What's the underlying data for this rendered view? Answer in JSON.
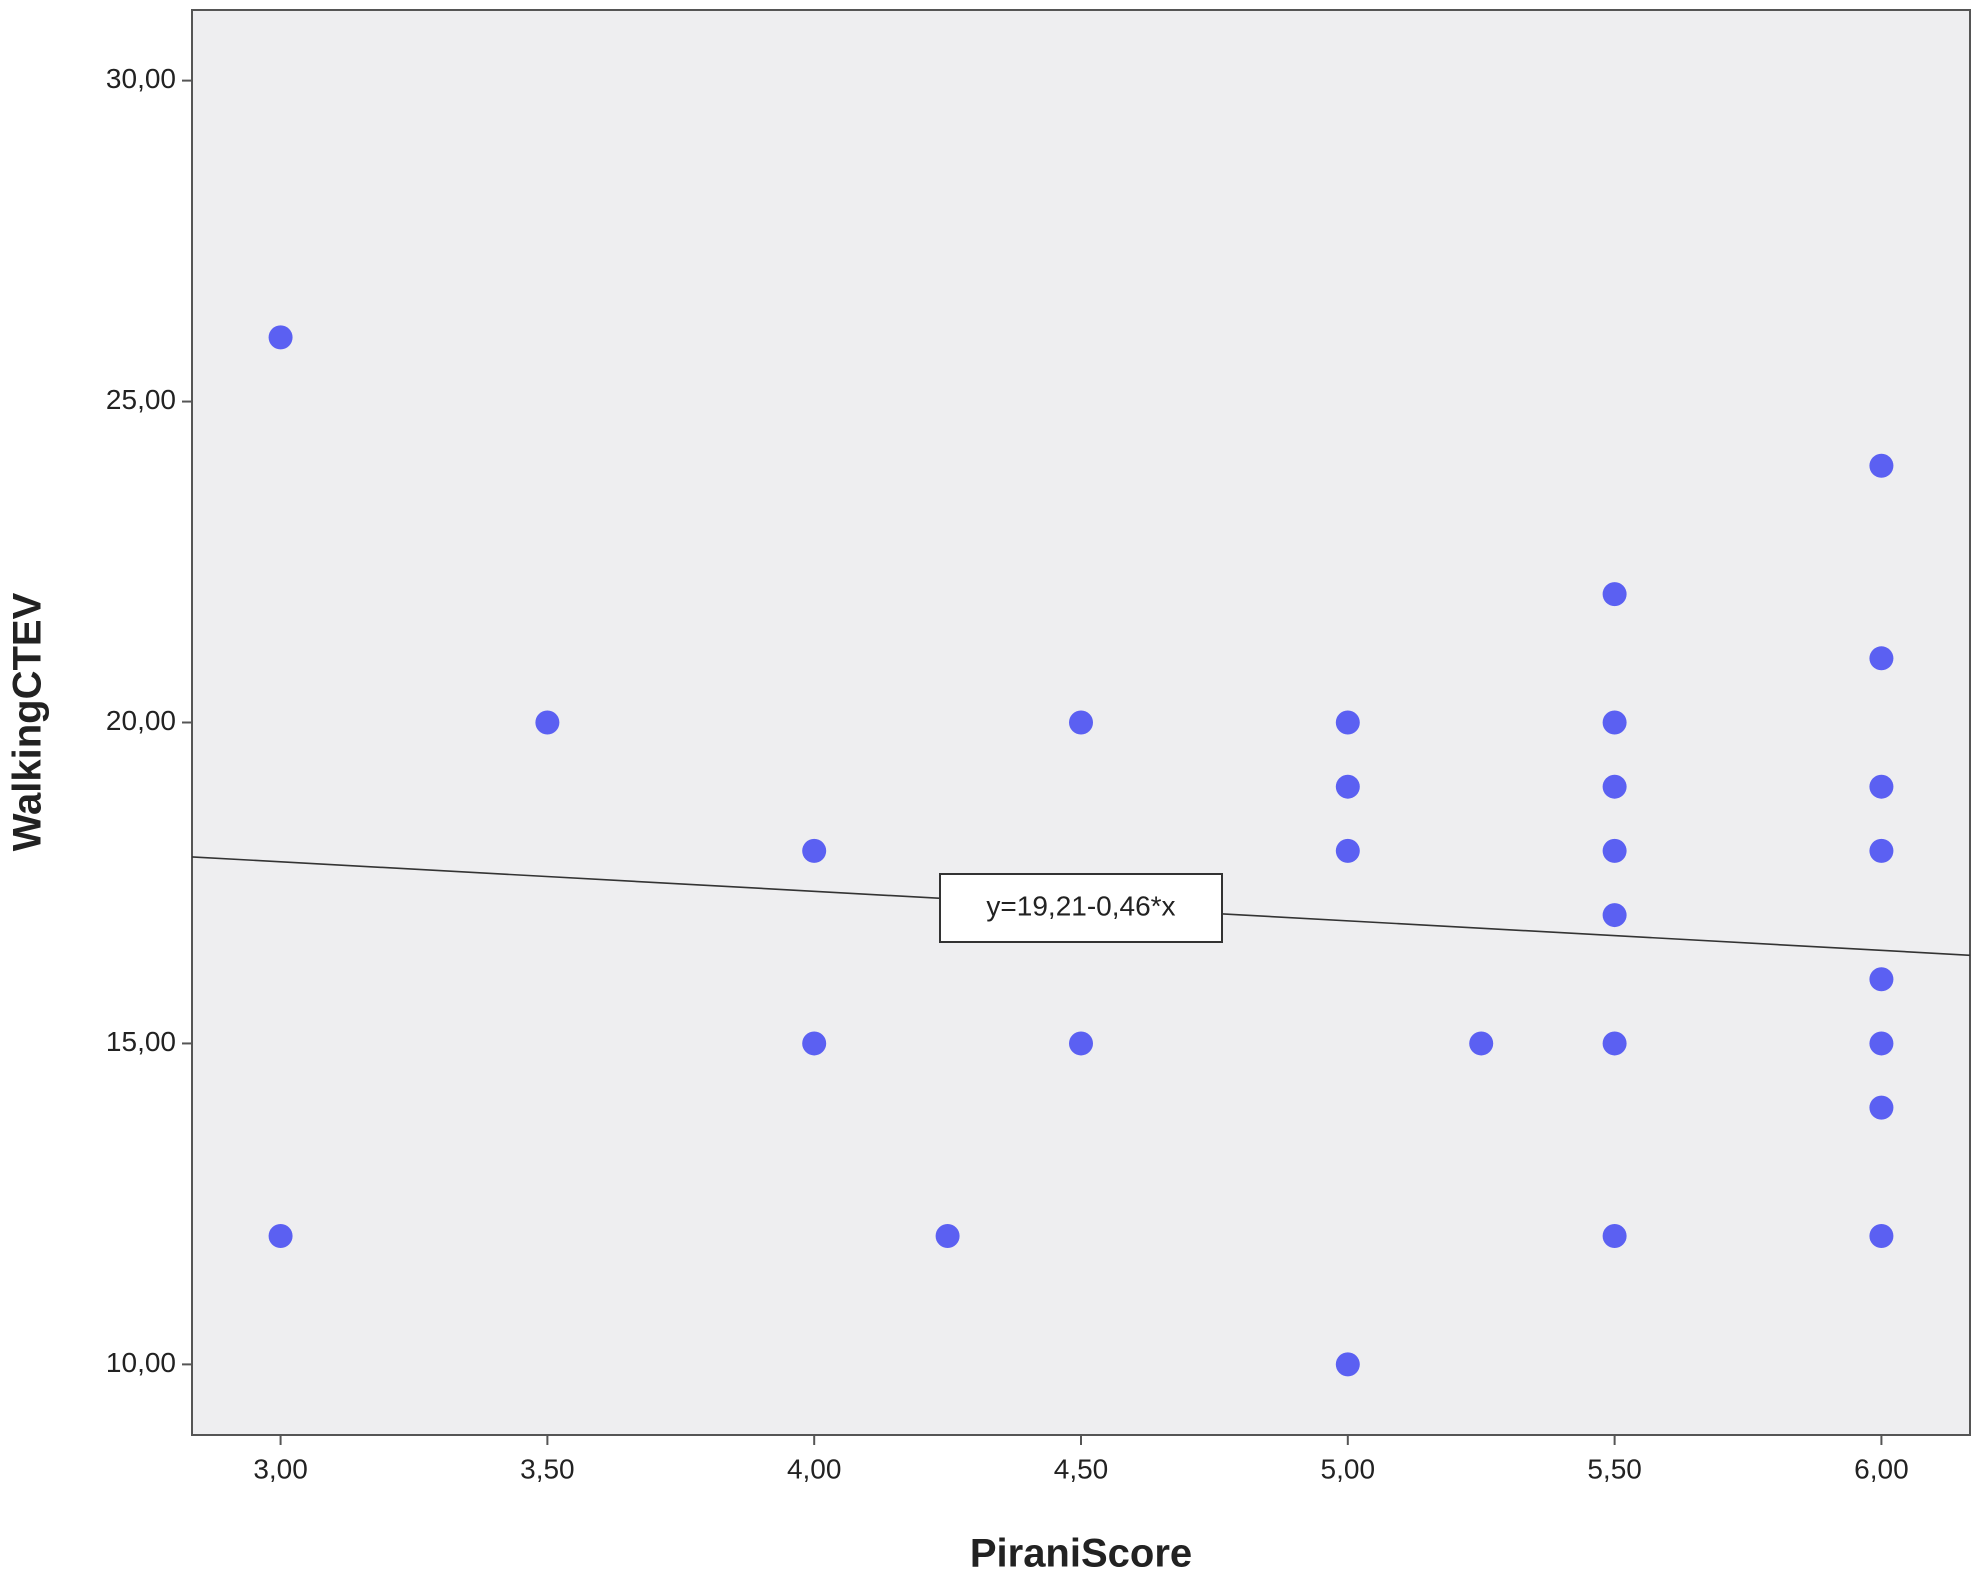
{
  "chart_data": {
    "type": "scatter",
    "x_label": "PiraniScore",
    "y_label": "WalkingCTEV",
    "color": "#5b60f2",
    "x": [
      3,
      3,
      3.5,
      4,
      4,
      4.25,
      4.5,
      4.5,
      5,
      5,
      5,
      5,
      5.25,
      5.5,
      5.5,
      5.5,
      5.5,
      5.5,
      5.5,
      5.5,
      6,
      6,
      6,
      6,
      6,
      6,
      6,
      6
    ],
    "values": [
      26,
      12,
      20,
      18,
      15,
      12,
      20,
      15,
      20,
      19,
      18,
      10,
      15,
      22,
      20,
      19,
      18,
      17,
      15,
      12,
      24,
      21,
      19,
      18,
      16,
      15,
      14,
      12
    ],
    "xlim": [
      2.834,
      6.166
    ],
    "ylim": [
      8.9,
      31.1
    ],
    "xticks": [
      {
        "value": 3,
        "label": "3,00"
      },
      {
        "value": 3.5,
        "label": "3,50"
      },
      {
        "value": 4,
        "label": "4,00"
      },
      {
        "value": 4.5,
        "label": "4,50"
      },
      {
        "value": 5,
        "label": "5,00"
      },
      {
        "value": 5.5,
        "label": "5,50"
      },
      {
        "value": 6,
        "label": "6,00"
      }
    ],
    "yticks": [
      {
        "value": 10,
        "label": "10,00"
      },
      {
        "value": 15,
        "label": "15,00"
      },
      {
        "value": 20,
        "label": "20,00"
      },
      {
        "value": 25,
        "label": "25,00"
      },
      {
        "value": 30,
        "label": "30,00"
      }
    ],
    "fit": {
      "intercept": 19.21,
      "slope": -0.46,
      "label": "y=19,21-0,46*x"
    }
  }
}
